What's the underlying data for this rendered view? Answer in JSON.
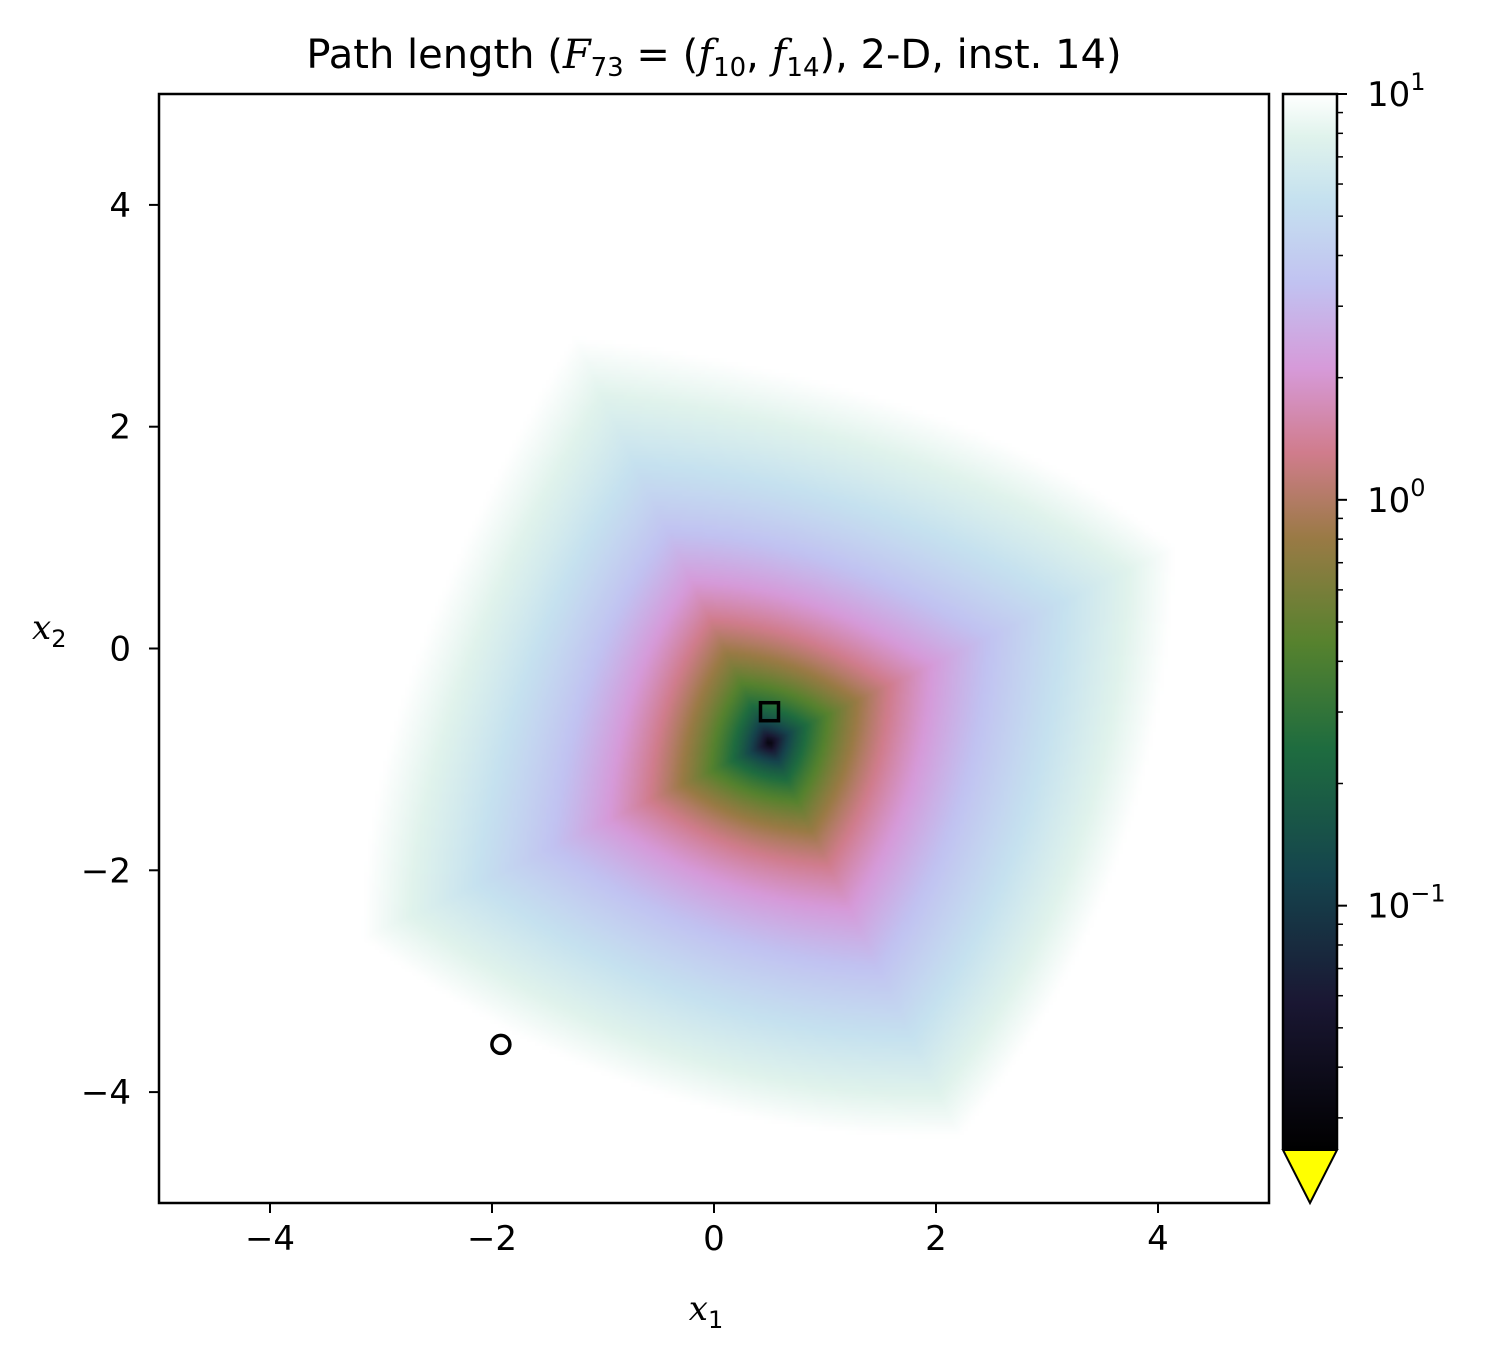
{
  "chart_data": {
    "type": "heatmap",
    "title": {
      "prefix": "Path length (",
      "F": "F",
      "F_sub": "73",
      "eq": " = (",
      "f1": "f",
      "f1_sub": "10",
      "comma": ", ",
      "f2": "f",
      "f2_sub": "14",
      "suffix": "), 2-D, inst. 14)"
    },
    "xlabel": {
      "base": "x",
      "sub": "1"
    },
    "ylabel": {
      "base": "x",
      "sub": "2"
    },
    "xlim": [
      -5,
      5
    ],
    "ylim": [
      -5,
      5
    ],
    "xticks": [
      {
        "value": -4,
        "label": "−4"
      },
      {
        "value": -2,
        "label": "−2"
      },
      {
        "value": 0,
        "label": "0"
      },
      {
        "value": 2,
        "label": "2"
      },
      {
        "value": 4,
        "label": "4"
      }
    ],
    "yticks": [
      {
        "value": 4,
        "label": "4"
      },
      {
        "value": 2,
        "label": "2"
      },
      {
        "value": 0,
        "label": "0"
      },
      {
        "value": -2,
        "label": "−2"
      },
      {
        "value": -4,
        "label": "−4"
      }
    ],
    "colorbar": {
      "scale": "log",
      "range": [
        0.025,
        10
      ],
      "ticks": [
        {
          "value": 10,
          "base": "10",
          "exp": "1"
        },
        {
          "value": 1,
          "base": "10",
          "exp": "0"
        },
        {
          "value": 0.1,
          "base": "10",
          "exp": "−1"
        }
      ],
      "under_color": "#ffff00",
      "colormap": "cubehelix"
    },
    "minimum_center": [
      0.5,
      -0.85
    ],
    "markers": [
      {
        "shape": "square",
        "x": 0.5,
        "y": -0.57
      },
      {
        "shape": "circle",
        "x": -1.92,
        "y": -3.57
      }
    ]
  }
}
